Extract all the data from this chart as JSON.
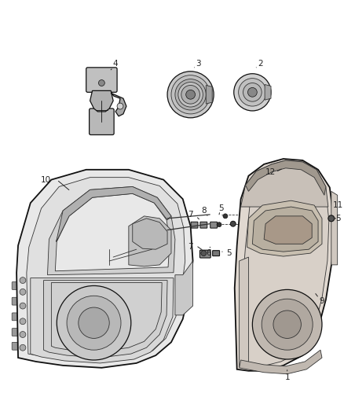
{
  "bg_color": "#ffffff",
  "lc": "#333333",
  "lc_dark": "#111111",
  "fig_w": 4.38,
  "fig_h": 5.33,
  "dpi": 100,
  "label_fs": 7.5,
  "label_color": "#222222"
}
